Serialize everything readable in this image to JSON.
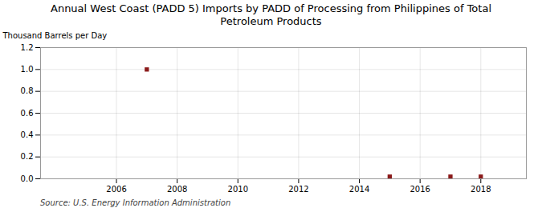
{
  "chart_data": {
    "type": "scatter",
    "title": "Annual West Coast (PADD 5) Imports by PADD of Processing from Philippines of Total\nPetroleum Products",
    "ylabel": "Thousand Barrels per Day",
    "annotations": [
      "Source: U.S. Energy Information Administration"
    ],
    "x": [
      2007,
      2015,
      2017,
      2018
    ],
    "values": [
      1.0,
      0.02,
      0.02,
      0.02
    ],
    "color": "#8B1A1A",
    "marker": "square",
    "xlim": [
      2003.5,
      2019.5
    ],
    "ylim": [
      0,
      1.2
    ],
    "xticks": [
      2006,
      2008,
      2010,
      2012,
      2014,
      2016,
      2018
    ],
    "yticks": [
      {
        "value": 0,
        "label": "0.0"
      },
      0.2,
      0.4,
      0.6,
      0.8,
      {
        "value": 1,
        "label": "1.0"
      },
      1.2
    ],
    "grid": true
  }
}
